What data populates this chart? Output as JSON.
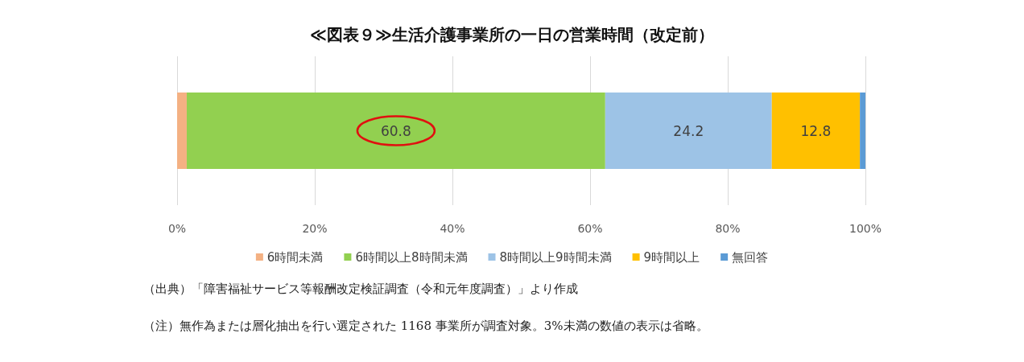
{
  "chart_data": {
    "type": "bar",
    "orientation": "horizontal",
    "stacked": true,
    "title": "≪図表９≫生活介護事業所の一日の営業時間（改定前）",
    "categories": [
      null
    ],
    "series": [
      {
        "name": "6時間未満",
        "color": "#f4b183",
        "values": [
          1.4
        ],
        "value_labels": [
          null
        ]
      },
      {
        "name": "6時間以上8時間未満",
        "color": "#92d050",
        "values": [
          60.8
        ],
        "value_labels": [
          "60.8"
        ]
      },
      {
        "name": "8時間以上9時間未満",
        "color": "#9dc3e6",
        "values": [
          24.2
        ],
        "value_labels": [
          "24.2"
        ]
      },
      {
        "name": "9時間以上",
        "color": "#ffc000",
        "values": [
          12.8
        ],
        "value_labels": [
          "12.8"
        ]
      },
      {
        "name": "無回答",
        "color": "#5b9bd5",
        "values": [
          0.8
        ],
        "value_labels": [
          null
        ]
      }
    ],
    "xlim": [
      0,
      100
    ],
    "xticks": [
      {
        "value": 0,
        "label": "0%"
      },
      {
        "value": 20,
        "label": "20%"
      },
      {
        "value": 40,
        "label": "40%"
      },
      {
        "value": 60,
        "label": "60%"
      },
      {
        "value": 80,
        "label": "80%"
      },
      {
        "value": 100,
        "label": "100%"
      }
    ],
    "grid": "x",
    "legend": "bottom",
    "annotations": [
      "（出典）「障害福祉サービス等報酬改定検証調査（令和元年度調査）」より作成",
      "（注）無作為または層化抽出を行い選定された 1168 事業所が調査対象。3%未満の数値の表示は省略。"
    ]
  }
}
